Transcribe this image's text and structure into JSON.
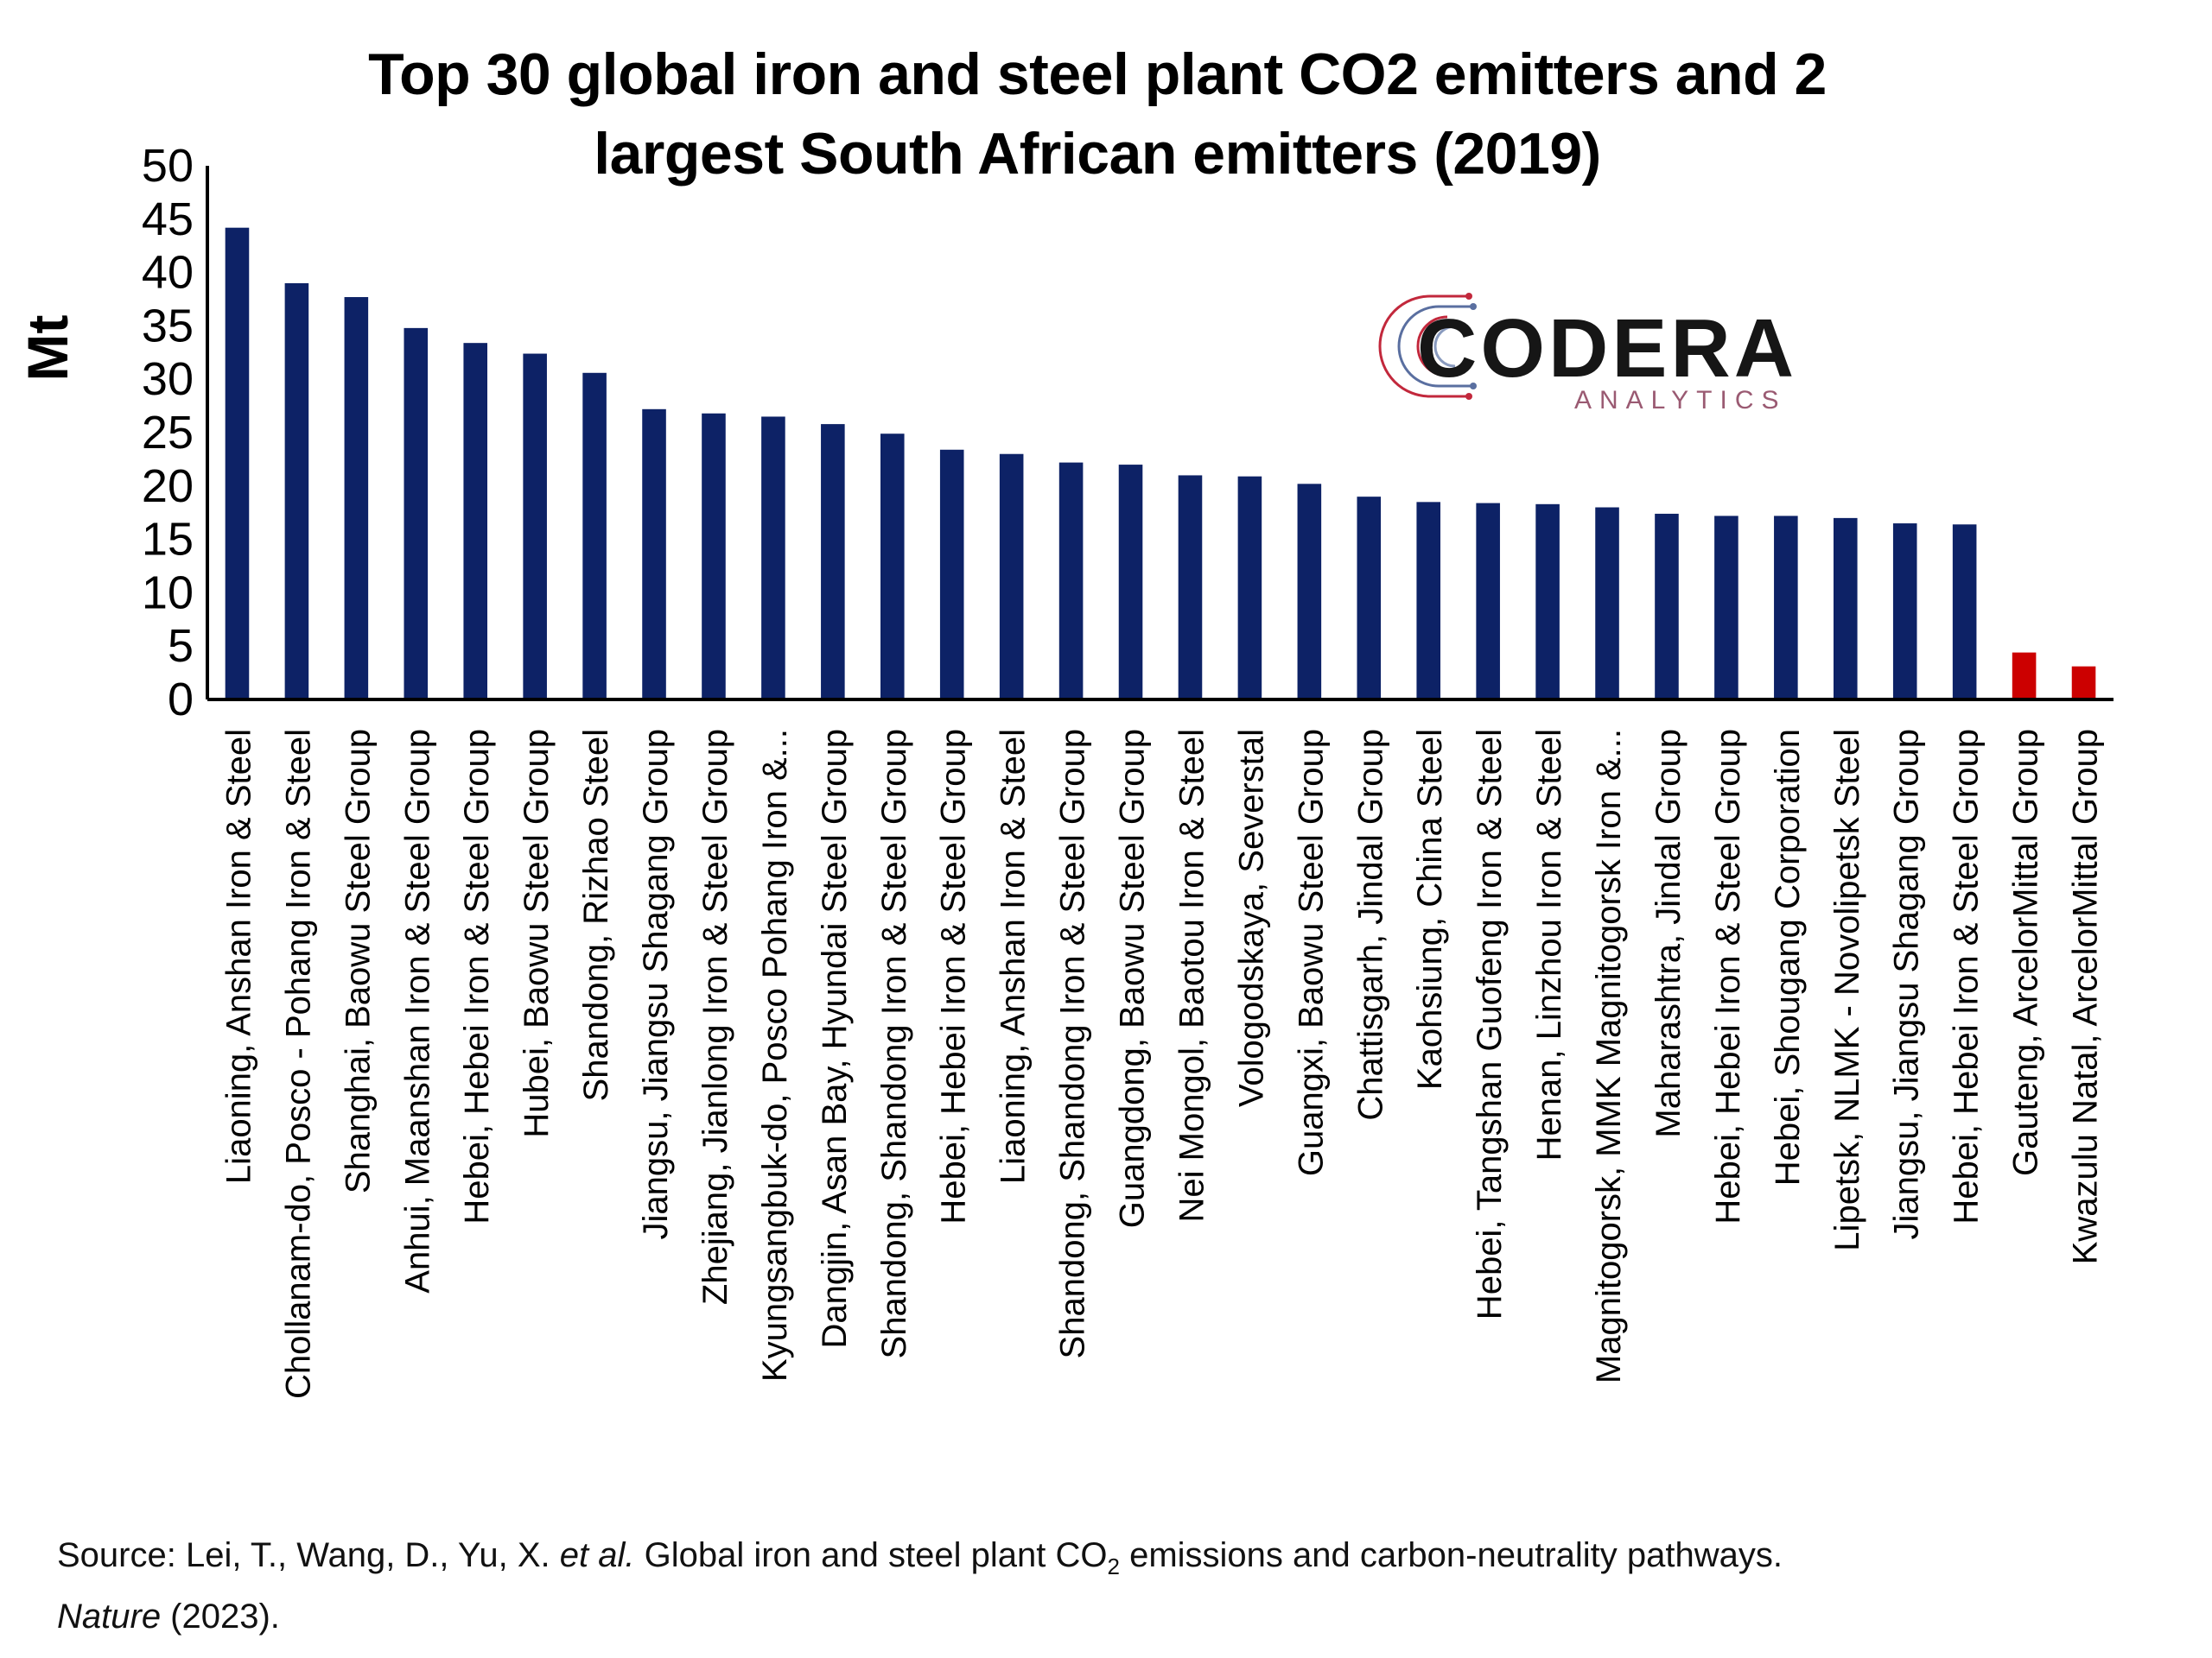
{
  "chart_data": {
    "type": "bar",
    "title": "Top 30 global iron and steel plant CO2 emitters and 2 largest South African emitters (2019)",
    "ylabel": "Mt",
    "xlabel": "",
    "ylim": [
      0,
      50
    ],
    "yticks": [
      "0",
      "5",
      "10",
      "15",
      "20",
      "25",
      "30",
      "35",
      "40",
      "45",
      "50"
    ],
    "grid": false,
    "legend": "none",
    "colors": {
      "global": "#0d2266",
      "south_africa": "#cc0000"
    },
    "categories": [
      "Liaoning, Anshan Iron & Steel",
      "Chollanam-do, Posco - Pohang Iron & Steel",
      "Shanghai, Baowu Steel Group",
      "Anhui, Maanshan Iron & Steel Group",
      "Hebei, Hebei Iron & Steel Group",
      "Hubei, Baowu Steel Group",
      "Shandong, Rizhao Steel",
      "Jiangsu, Jiangsu Shagang Group",
      "Zhejiang, Jianlong Iron & Steel Group",
      "Kyungsangbuk-do, Posco Pohang Iron &...",
      "Dangjin, Asan Bay, Hyundai Steel Group",
      "Shandong, Shandong Iron & Steel Group",
      "Hebei, Hebei Iron & Steel Group",
      "Liaoning, Anshan Iron & Steel",
      "Shandong, Shandong Iron & Steel Group",
      "Guangdong, Baowu Steel Group",
      "Nei Mongol, Baotou Iron & Steel",
      "Vologodskaya, Severstal",
      "Guangxi, Baowu Steel Group",
      "Chattisgarh, Jindal Group",
      "Kaohsiung, China Steel",
      "Hebei, Tangshan Guofeng Iron & Steel",
      "Henan, Linzhou Iron & Steel",
      "Magnitogorsk, MMK Magnitogorsk Iron &...",
      "Maharashtra, Jindal Group",
      "Hebei, Hebei Iron & Steel Group",
      "Hebei, Shougang Corporation",
      "Lipetsk, NLMK - Novolipetsk Steel",
      "Jiangsu, Jiangsu Shagang Group",
      "Hebei, Hebei Iron & Steel Group",
      "Gauteng, ArcelorMittal Group",
      "Kwazulu Natal, ArcelorMittal Group"
    ],
    "values": [
      44.2,
      39.0,
      37.7,
      34.8,
      33.4,
      32.4,
      30.6,
      27.2,
      26.8,
      26.5,
      25.8,
      24.9,
      23.4,
      23.0,
      22.2,
      22.0,
      21.0,
      20.9,
      20.2,
      19.0,
      18.5,
      18.4,
      18.3,
      18.0,
      17.4,
      17.2,
      17.2,
      17.0,
      16.5,
      16.4,
      4.4,
      3.1
    ],
    "highlight_from_index": 30
  },
  "logo": {
    "name": "CODERA",
    "tagline": "ANALYTICS"
  },
  "source": {
    "prefix": "Source: Lei, T., Wang, D., Yu, X. ",
    "etal": "et al.",
    "middle": " Global iron and steel plant CO",
    "subscript": "2",
    "suffix": " emissions and carbon-neutrality pathways.",
    "journal": "Nature",
    "year": " (2023)."
  }
}
